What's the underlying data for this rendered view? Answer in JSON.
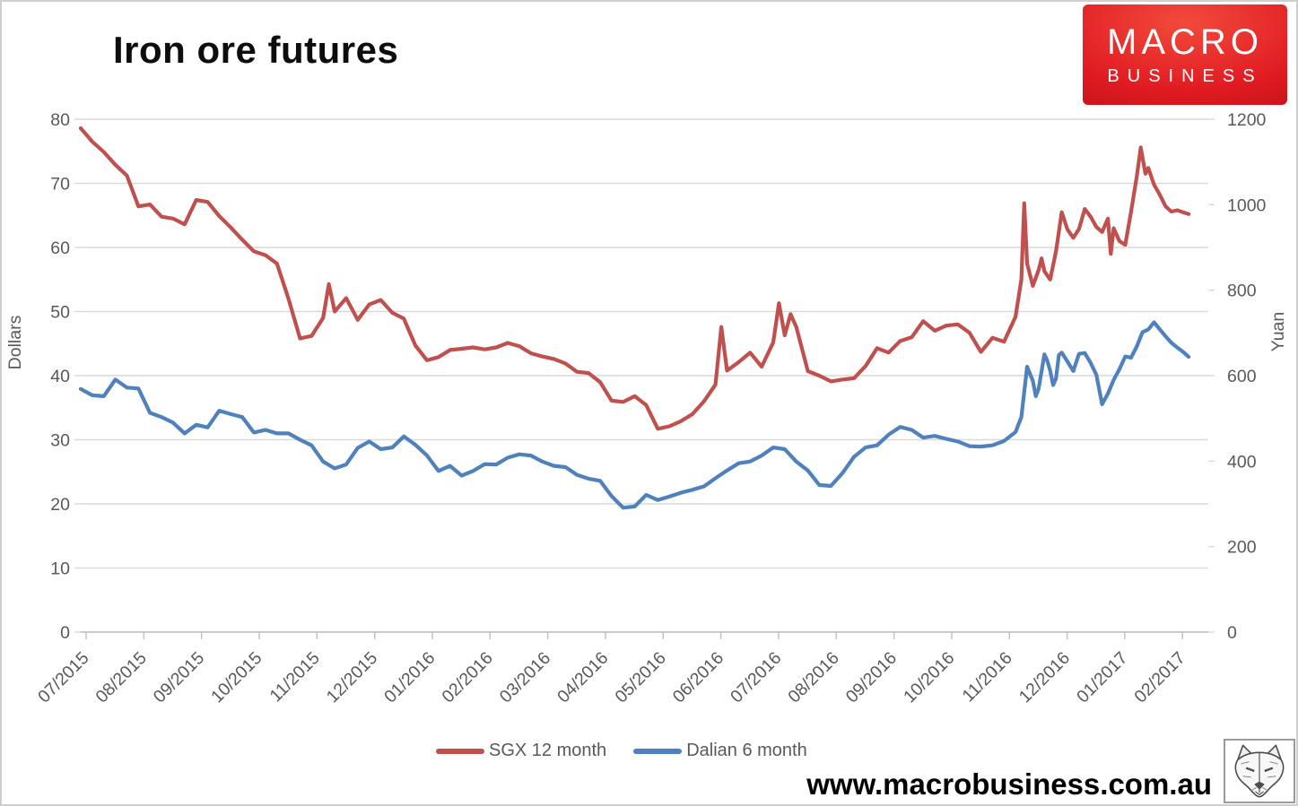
{
  "header": {
    "title": "Iron ore futures"
  },
  "logo": {
    "line1": "MACRO",
    "line2": "BUSINESS",
    "bg_color": "#e01b22",
    "text_color": "#ffffff"
  },
  "footer": {
    "url": "www.macrobusiness.com.au",
    "fox_logo": "fox-sketch-icon"
  },
  "chart_data": {
    "type": "line",
    "title": "Iron ore futures",
    "grid": true,
    "grid_color": "#d9d9d9",
    "axis_line_color": "#bfbfbf",
    "tick_label_color": "#595959",
    "legend_position": "bottom",
    "x_axis": {
      "note": "t = months after the 07/2015 tick",
      "labels": [
        "07/2015",
        "08/2015",
        "09/2015",
        "10/2015",
        "11/2015",
        "12/2015",
        "01/2016",
        "02/2016",
        "03/2016",
        "04/2016",
        "05/2016",
        "06/2016",
        "07/2016",
        "08/2016",
        "09/2016",
        "10/2016",
        "11/2016",
        "12/2016",
        "01/2017",
        "02/2017"
      ]
    },
    "left_axis": {
      "label": "Dollars",
      "min": 0,
      "max": 80,
      "step": 10
    },
    "right_axis": {
      "label": "Yuan",
      "min": 0,
      "max": 1200,
      "step": 200
    },
    "series": [
      {
        "name": "SGX 12 month",
        "axis": "left",
        "unit": "USD",
        "color": "#C0504D",
        "points": [
          [
            0,
            78.6
          ],
          [
            0.2,
            76.5
          ],
          [
            0.4,
            74.9
          ],
          [
            0.6,
            72.9
          ],
          [
            0.8,
            71.2
          ],
          [
            1,
            66.4
          ],
          [
            1.2,
            66.7
          ],
          [
            1.4,
            64.8
          ],
          [
            1.6,
            64.5
          ],
          [
            1.8,
            63.6
          ],
          [
            2,
            67.4
          ],
          [
            2.2,
            67.1
          ],
          [
            2.4,
            64.9
          ],
          [
            2.6,
            63.1
          ],
          [
            2.8,
            61.2
          ],
          [
            3,
            59.4
          ],
          [
            3.2,
            58.8
          ],
          [
            3.4,
            57.5
          ],
          [
            3.6,
            52
          ],
          [
            3.8,
            45.8
          ],
          [
            4,
            46.2
          ],
          [
            4.2,
            49
          ],
          [
            4.3,
            54.3
          ],
          [
            4.4,
            50
          ],
          [
            4.6,
            52.1
          ],
          [
            4.8,
            48.7
          ],
          [
            5,
            51.1
          ],
          [
            5.2,
            51.8
          ],
          [
            5.4,
            49.8
          ],
          [
            5.6,
            48.9
          ],
          [
            5.8,
            44.7
          ],
          [
            6,
            42.4
          ],
          [
            6.2,
            42.9
          ],
          [
            6.4,
            44
          ],
          [
            6.6,
            44.2
          ],
          [
            6.8,
            44.4
          ],
          [
            7,
            44.1
          ],
          [
            7.2,
            44.4
          ],
          [
            7.4,
            45.1
          ],
          [
            7.6,
            44.6
          ],
          [
            7.8,
            43.5
          ],
          [
            8,
            43
          ],
          [
            8.2,
            42.6
          ],
          [
            8.4,
            41.9
          ],
          [
            8.6,
            40.6
          ],
          [
            8.8,
            40.4
          ],
          [
            9,
            39
          ],
          [
            9.2,
            36.1
          ],
          [
            9.4,
            35.9
          ],
          [
            9.6,
            36.8
          ],
          [
            9.8,
            35.4
          ],
          [
            10,
            31.7
          ],
          [
            10.2,
            32.1
          ],
          [
            10.4,
            32.9
          ],
          [
            10.6,
            34
          ],
          [
            10.8,
            36
          ],
          [
            11,
            38.6
          ],
          [
            11.1,
            47.6
          ],
          [
            11.2,
            40.8
          ],
          [
            11.4,
            42.1
          ],
          [
            11.6,
            43.6
          ],
          [
            11.8,
            41.4
          ],
          [
            12,
            45.2
          ],
          [
            12.1,
            51.3
          ],
          [
            12.2,
            46.3
          ],
          [
            12.3,
            49.6
          ],
          [
            12.4,
            47.6
          ],
          [
            12.6,
            40.7
          ],
          [
            12.8,
            40
          ],
          [
            13,
            39.1
          ],
          [
            13.2,
            39.4
          ],
          [
            13.4,
            39.6
          ],
          [
            13.6,
            41.5
          ],
          [
            13.8,
            44.3
          ],
          [
            14,
            43.6
          ],
          [
            14.2,
            45.4
          ],
          [
            14.4,
            46
          ],
          [
            14.6,
            48.5
          ],
          [
            14.8,
            47
          ],
          [
            15,
            47.8
          ],
          [
            15.2,
            48
          ],
          [
            15.4,
            46.7
          ],
          [
            15.6,
            43.7
          ],
          [
            15.8,
            45.9
          ],
          [
            16,
            45.3
          ],
          [
            16.2,
            49.2
          ],
          [
            16.3,
            55
          ],
          [
            16.35,
            66.9
          ],
          [
            16.4,
            57.5
          ],
          [
            16.5,
            54
          ],
          [
            16.6,
            56.5
          ],
          [
            16.65,
            58.3
          ],
          [
            16.7,
            56.3
          ],
          [
            16.8,
            55
          ],
          [
            16.9,
            59.4
          ],
          [
            17,
            65.5
          ],
          [
            17.1,
            62.8
          ],
          [
            17.2,
            61.5
          ],
          [
            17.3,
            62.9
          ],
          [
            17.4,
            66
          ],
          [
            17.5,
            64.8
          ],
          [
            17.6,
            63.2
          ],
          [
            17.7,
            62.4
          ],
          [
            17.8,
            64.5
          ],
          [
            17.85,
            59
          ],
          [
            17.9,
            63
          ],
          [
            18,
            61
          ],
          [
            18.1,
            60.4
          ],
          [
            18.2,
            65.5
          ],
          [
            18.3,
            71
          ],
          [
            18.37,
            75.6
          ],
          [
            18.45,
            71.5
          ],
          [
            18.5,
            72.4
          ],
          [
            18.6,
            69.8
          ],
          [
            18.7,
            68.2
          ],
          [
            18.8,
            66.4
          ],
          [
            18.9,
            65.6
          ],
          [
            19,
            65.8
          ],
          [
            19.1,
            65.5
          ],
          [
            19.2,
            65.2
          ]
        ]
      },
      {
        "name": "Dalian 6 month",
        "axis": "right",
        "unit": "CNY",
        "color": "#4F81BD",
        "points": [
          [
            0,
            569
          ],
          [
            0.2,
            554
          ],
          [
            0.4,
            552
          ],
          [
            0.6,
            591
          ],
          [
            0.8,
            572
          ],
          [
            1,
            570
          ],
          [
            1.2,
            513
          ],
          [
            1.4,
            503
          ],
          [
            1.6,
            490
          ],
          [
            1.8,
            465
          ],
          [
            2,
            485
          ],
          [
            2.2,
            479
          ],
          [
            2.4,
            518
          ],
          [
            2.6,
            510
          ],
          [
            2.8,
            503
          ],
          [
            3,
            467
          ],
          [
            3.2,
            473
          ],
          [
            3.4,
            465
          ],
          [
            3.6,
            465
          ],
          [
            3.8,
            450
          ],
          [
            4,
            437
          ],
          [
            4.2,
            399
          ],
          [
            4.4,
            383
          ],
          [
            4.6,
            392
          ],
          [
            4.8,
            431
          ],
          [
            5,
            446
          ],
          [
            5.2,
            428
          ],
          [
            5.4,
            432
          ],
          [
            5.6,
            458
          ],
          [
            5.8,
            438
          ],
          [
            6,
            413
          ],
          [
            6.2,
            377
          ],
          [
            6.4,
            389
          ],
          [
            6.6,
            366
          ],
          [
            6.8,
            377
          ],
          [
            7,
            393
          ],
          [
            7.2,
            392
          ],
          [
            7.4,
            408
          ],
          [
            7.6,
            416
          ],
          [
            7.8,
            413
          ],
          [
            8,
            399
          ],
          [
            8.2,
            389
          ],
          [
            8.4,
            386
          ],
          [
            8.6,
            368
          ],
          [
            8.8,
            359
          ],
          [
            9,
            354
          ],
          [
            9.2,
            318
          ],
          [
            9.4,
            291
          ],
          [
            9.6,
            294
          ],
          [
            9.8,
            321
          ],
          [
            10,
            309
          ],
          [
            10.2,
            317
          ],
          [
            10.4,
            326
          ],
          [
            10.6,
            333
          ],
          [
            10.8,
            341
          ],
          [
            11,
            360
          ],
          [
            11.2,
            378
          ],
          [
            11.4,
            395
          ],
          [
            11.6,
            399
          ],
          [
            11.8,
            413
          ],
          [
            12,
            432
          ],
          [
            12.2,
            428
          ],
          [
            12.4,
            399
          ],
          [
            12.6,
            378
          ],
          [
            12.8,
            344
          ],
          [
            13,
            342
          ],
          [
            13.2,
            372
          ],
          [
            13.4,
            410
          ],
          [
            13.6,
            432
          ],
          [
            13.8,
            437
          ],
          [
            14,
            462
          ],
          [
            14.2,
            480
          ],
          [
            14.4,
            473
          ],
          [
            14.6,
            455
          ],
          [
            14.8,
            459
          ],
          [
            15,
            452
          ],
          [
            15.2,
            446
          ],
          [
            15.4,
            435
          ],
          [
            15.6,
            434
          ],
          [
            15.8,
            437
          ],
          [
            16,
            447
          ],
          [
            16.2,
            468
          ],
          [
            16.3,
            503
          ],
          [
            16.4,
            621
          ],
          [
            16.5,
            588
          ],
          [
            16.55,
            552
          ],
          [
            16.6,
            570
          ],
          [
            16.7,
            650
          ],
          [
            16.75,
            635
          ],
          [
            16.8,
            612
          ],
          [
            16.85,
            578
          ],
          [
            16.9,
            593
          ],
          [
            16.95,
            648
          ],
          [
            17,
            654
          ],
          [
            17.1,
            633
          ],
          [
            17.2,
            611
          ],
          [
            17.3,
            651
          ],
          [
            17.4,
            653
          ],
          [
            17.5,
            630
          ],
          [
            17.6,
            602
          ],
          [
            17.7,
            533
          ],
          [
            17.8,
            558
          ],
          [
            17.9,
            590
          ],
          [
            18,
            615
          ],
          [
            18.1,
            645
          ],
          [
            18.2,
            642
          ],
          [
            18.3,
            668
          ],
          [
            18.4,
            702
          ],
          [
            18.5,
            708
          ],
          [
            18.6,
            725
          ],
          [
            18.7,
            708
          ],
          [
            18.8,
            692
          ],
          [
            18.9,
            677
          ],
          [
            19,
            666
          ],
          [
            19.1,
            656
          ],
          [
            19.2,
            644
          ]
        ]
      }
    ]
  }
}
